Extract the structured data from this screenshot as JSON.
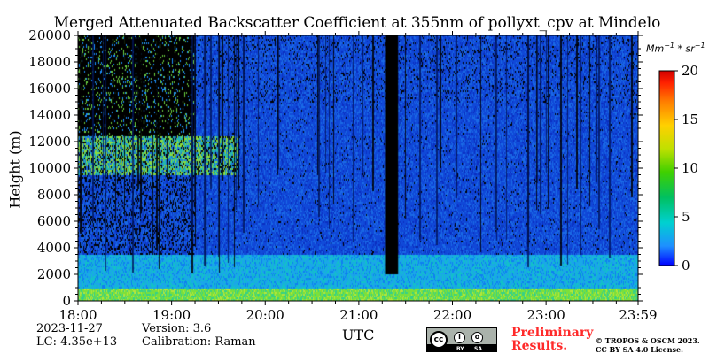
{
  "chart_data": {
    "type": "heatmap",
    "title": "Merged Attenuated Backscatter Coefficient at 355nm of pollyxt_cpv at Mindelo",
    "xlabel": "UTC",
    "ylabel": "Height (m)",
    "x_ticks": [
      "18:00",
      "19:00",
      "20:00",
      "21:00",
      "22:00",
      "23:00",
      "23:59"
    ],
    "x_tick_hours": [
      18,
      19,
      20,
      21,
      22,
      23,
      23.9833
    ],
    "xlim_hours": [
      18,
      23.9833
    ],
    "y_ticks": [
      0,
      2000,
      4000,
      6000,
      8000,
      10000,
      12000,
      14000,
      16000,
      18000,
      20000
    ],
    "ylim": [
      0,
      20000
    ],
    "colorbar": {
      "label": "Mm$^{-1}*sr^{-1}$",
      "label_text": "Mm",
      "label_sup1": "−1",
      "label_mid": " * sr",
      "label_sup2": "−1",
      "ticks": [
        0,
        5,
        10,
        15,
        20
      ],
      "range": [
        0,
        20
      ],
      "colormap": [
        "#0000ff",
        "#1e90ff",
        "#00d0d0",
        "#00c060",
        "#40d000",
        "#c0e000",
        "#ffd000",
        "#ff7f00",
        "#ff2000",
        "#d00000"
      ]
    },
    "features": {
      "surface_layer_m": [
        0,
        1000
      ],
      "aerosol_layer_m": [
        1000,
        3500
      ],
      "cloud_layer_m": [
        9500,
        12500
      ],
      "cloud_time_hours": [
        18,
        19.7
      ],
      "no_signal_time_hours": [
        21.28,
        21.42
      ]
    }
  },
  "footer": {
    "date": "2023-11-27",
    "lc": "LC: 4.35e+13",
    "version": "Version: 3.6",
    "calibration": "Calibration: Raman",
    "preliminary_line1": "Preliminary",
    "preliminary_line2": "Results.",
    "copyright_line1": "© TROPOS & OSCM 2023.",
    "copyright_line2": "CC BY SA 4.0 License.",
    "badge_cc": "cc",
    "badge_by": "BY",
    "badge_sa": "SA"
  },
  "colors": {
    "background": "#ffffff",
    "no_signal": "#000000",
    "preliminary": "#ff2a2a"
  }
}
